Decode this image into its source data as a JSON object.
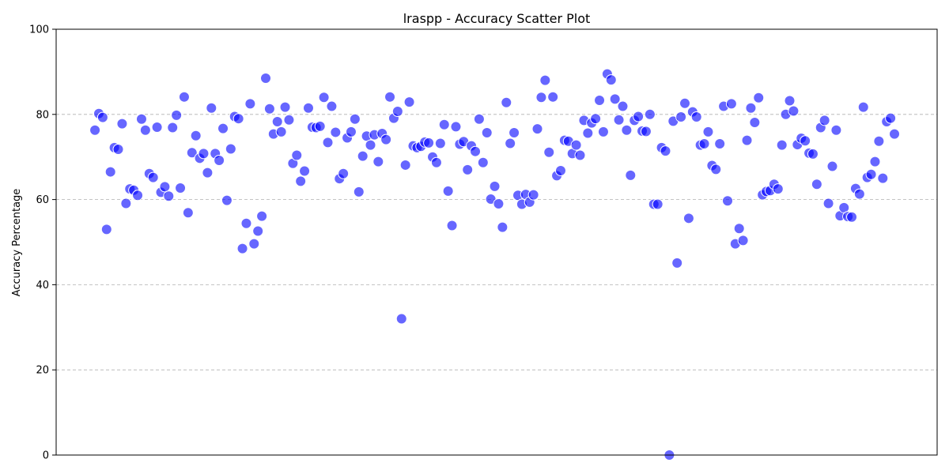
{
  "chart_data": {
    "type": "scatter",
    "title": "lraspp - Accuracy Scatter Plot",
    "xlabel": "",
    "ylabel": "Accuracy Percentage",
    "ylim": [
      0,
      100
    ],
    "yticks": [
      0,
      20,
      40,
      60,
      80,
      100
    ],
    "xlim": [
      -10,
      217
    ],
    "grid": "y",
    "point_color": "#0000ff",
    "point_alpha": 0.6,
    "x": [
      0,
      1,
      2,
      3,
      4,
      5,
      6,
      7,
      8,
      9,
      10,
      11,
      12,
      13,
      14,
      15,
      16,
      17,
      18,
      19,
      20,
      21,
      22,
      23,
      24,
      25,
      26,
      27,
      28,
      29,
      30,
      31,
      32,
      33,
      34,
      35,
      36,
      37,
      38,
      39,
      40,
      41,
      42,
      43,
      44,
      45,
      46,
      47,
      48,
      49,
      50,
      51,
      52,
      53,
      54,
      55,
      56,
      57,
      58,
      59,
      60,
      61,
      62,
      63,
      64,
      65,
      66,
      67,
      68,
      69,
      70,
      71,
      72,
      73,
      74,
      75,
      76,
      77,
      78,
      79,
      80,
      81,
      82,
      83,
      84,
      85,
      86,
      87,
      88,
      89,
      90,
      91,
      92,
      93,
      94,
      95,
      96,
      97,
      98,
      99,
      100,
      101,
      102,
      103,
      104,
      105,
      106,
      107,
      108,
      109,
      110,
      111,
      112,
      113,
      114,
      115,
      116,
      117,
      118,
      119,
      120,
      121,
      122,
      123,
      124,
      125,
      126,
      127,
      128,
      129,
      130,
      131,
      132,
      133,
      134,
      135,
      136,
      137,
      138,
      139,
      140,
      141,
      142,
      143,
      144,
      145,
      146,
      147,
      148,
      149,
      150,
      151,
      152,
      153,
      154,
      155,
      156,
      157,
      158,
      159,
      160,
      161,
      162,
      163,
      164,
      165,
      166,
      167,
      168,
      169,
      170,
      171,
      172,
      173,
      174,
      175,
      176,
      177,
      178,
      179,
      180,
      181,
      182,
      183,
      184,
      185,
      186,
      187,
      188,
      189,
      190,
      191,
      192,
      193,
      194,
      195,
      196,
      197,
      198,
      199,
      200,
      201,
      202,
      203,
      204,
      205,
      206
    ],
    "y": [
      76.3,
      80.2,
      79.3,
      53.0,
      66.5,
      72.2,
      71.8,
      77.8,
      59.1,
      62.5,
      62.2,
      61.0,
      78.9,
      76.3,
      66.1,
      65.2,
      77.0,
      61.7,
      63.0,
      60.8,
      76.9,
      79.8,
      62.7,
      84.1,
      56.9,
      71.0,
      75.0,
      69.7,
      70.8,
      66.3,
      81.5,
      70.8,
      69.2,
      76.7,
      59.8,
      71.9,
      79.5,
      79.0,
      48.5,
      54.4,
      82.5,
      49.6,
      52.6,
      56.1,
      88.5,
      81.3,
      75.4,
      78.3,
      75.9,
      81.7,
      78.7,
      68.5,
      70.4,
      64.3,
      66.7,
      81.5,
      77.0,
      76.9,
      77.2,
      84.0,
      73.4,
      81.9,
      75.8,
      64.9,
      66.1,
      74.5,
      75.9,
      78.9,
      61.8,
      70.2,
      74.9,
      72.8,
      75.2,
      68.9,
      75.5,
      74.1,
      84.1,
      79.1,
      80.7,
      32.0,
      68.1,
      82.9,
      72.6,
      72.2,
      72.5,
      73.5,
      73.3,
      70.0,
      68.7,
      73.2,
      77.6,
      62.0,
      53.9,
      77.1,
      73.0,
      73.6,
      67.0,
      72.6,
      71.3,
      78.9,
      68.7,
      75.7,
      60.1,
      63.1,
      59.0,
      53.5,
      82.8,
      73.2,
      75.7,
      61.0,
      58.9,
      61.2,
      59.4,
      61.1,
      76.6,
      84.0,
      88.0,
      71.1,
      84.1,
      65.6,
      66.8,
      73.9,
      73.7,
      70.8,
      72.8,
      70.4,
      78.6,
      75.6,
      78.0,
      79.0,
      83.3,
      75.9,
      89.5,
      88.1,
      83.6,
      78.7,
      81.9,
      76.3,
      65.7,
      78.6,
      79.5,
      76.1,
      76.0,
      80.0,
      58.9,
      58.9,
      72.2,
      71.4,
      0.0,
      78.4,
      45.1,
      79.4,
      82.6,
      55.6,
      80.6,
      79.4,
      72.8,
      73.1,
      75.9,
      68.0,
      67.1,
      73.1,
      81.9,
      59.7,
      82.5,
      49.6,
      53.2,
      50.4,
      73.9,
      81.5,
      78.1,
      83.9,
      61.1,
      61.9,
      62.1,
      63.6,
      62.5,
      72.8,
      80.0,
      83.2,
      80.8,
      72.9,
      74.4,
      73.8,
      70.9,
      70.7,
      63.6,
      76.9,
      78.6,
      59.1,
      67.8,
      76.3,
      56.2,
      58.1,
      56.0,
      55.9,
      62.6,
      61.3,
      81.7,
      65.2,
      65.9,
      68.9,
      73.7,
      65.0,
      78.3,
      79.1,
      75.4
    ]
  }
}
